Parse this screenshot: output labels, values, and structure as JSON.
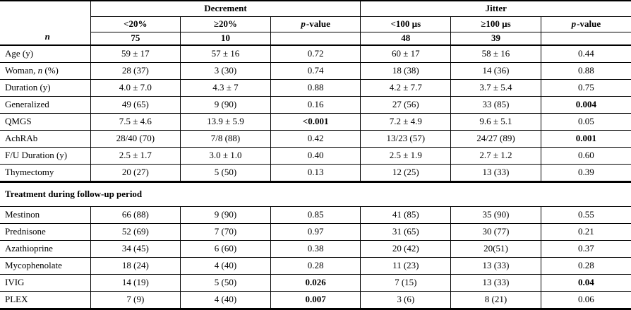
{
  "table": {
    "corner_label": "n",
    "groups": {
      "decrement": "Decrement",
      "jitter": "Jitter"
    },
    "pvalue": {
      "prefix": "p",
      "suffix": "-value"
    },
    "sub_headers": {
      "dec_lt": "<20%",
      "dec_ge": "≥20%",
      "jit_lt": "<100 µs",
      "jit_ge": "≥100 µs"
    },
    "n_row": {
      "cells": [
        "75",
        "10",
        "",
        "48",
        "39",
        ""
      ]
    },
    "rows": [
      {
        "label": "Age (y)",
        "cells": [
          "59 ± 17",
          "57 ± 16",
          "0.72",
          "60 ± 17",
          "58 ± 16",
          "0.44"
        ]
      },
      {
        "label_parts": [
          "Woman, ",
          "n",
          " (%)"
        ],
        "cells": [
          "28 (37)",
          "3 (30)",
          "0.74",
          "18 (38)",
          "14 (36)",
          "0.88"
        ]
      },
      {
        "label": "Duration (y)",
        "cells": [
          "4.0 ± 7.0",
          "4.3 ± 7",
          "0.88",
          "4.2 ± 7.7",
          "3.7 ± 5.4",
          "0.75"
        ]
      },
      {
        "label": "Generalized",
        "cells": [
          "49 (65)",
          "9 (90)",
          "0.16",
          "27 (56)",
          "33 (85)",
          "0.004"
        ]
      },
      {
        "label": "QMGS",
        "cells": [
          "7.5 ± 4.6",
          "13.9 ± 5.9",
          "<0.001",
          "7.2 ± 4.9",
          "9.6 ± 5.1",
          "0.05"
        ]
      },
      {
        "label": "AchRAb",
        "cells": [
          "28/40 (70)",
          "7/8 (88)",
          "0.42",
          "13/23 (57)",
          "24/27 (89)",
          "0.001"
        ]
      },
      {
        "label": "F/U Duration (y)",
        "cells": [
          "2.5 ± 1.7",
          "3.0 ± 1.0",
          "0.40",
          "2.5 ± 1.9",
          "2.7 ± 1.2",
          "0.60"
        ]
      },
      {
        "label": "Thymectomy",
        "cells": [
          "20 (27)",
          "5 (50)",
          "0.13",
          "12 (25)",
          "13 (33)",
          "0.39"
        ]
      }
    ],
    "section_header": "Treatment during follow-up period",
    "treatment_rows": [
      {
        "label": "Mestinon",
        "cells": [
          "66 (88)",
          "9 (90)",
          "0.85",
          "41 (85)",
          "35 (90)",
          "0.55"
        ]
      },
      {
        "label": "Prednisone",
        "cells": [
          "52 (69)",
          "7 (70)",
          "0.97",
          "31 (65)",
          "30 (77)",
          "0.21"
        ]
      },
      {
        "label": "Azathioprine",
        "cells": [
          "34 (45)",
          "6 (60)",
          "0.38",
          "20 (42)",
          "20(51)",
          "0.37"
        ]
      },
      {
        "label": "Mycophenolate",
        "cells": [
          "18 (24)",
          "4 (40)",
          "0.28",
          "11 (23)",
          "13 (33)",
          "0.28"
        ]
      },
      {
        "label": "IVIG",
        "cells": [
          "14 (19)",
          "5 (50)",
          "0.026",
          "7 (15)",
          "13 (33)",
          "0.04"
        ]
      },
      {
        "label": "PLEX",
        "cells": [
          "7 (9)",
          "4 (40)",
          "0.007",
          "3 (6)",
          "8 (21)",
          "0.06"
        ]
      }
    ]
  }
}
